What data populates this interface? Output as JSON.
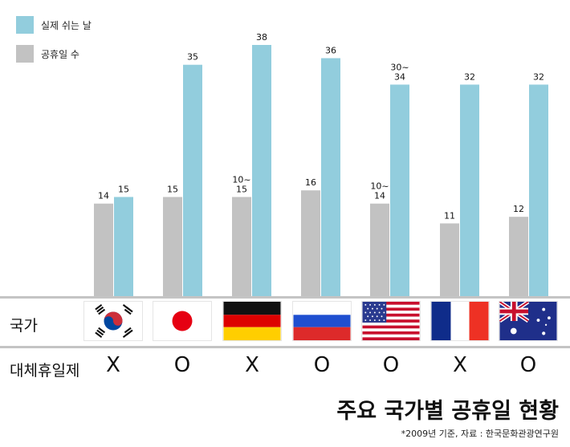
{
  "chart_data": {
    "type": "bar",
    "title": "주요 국가별 공휴일 현황",
    "source": "*2009년 기준, 자료 : 한국문화관광연구원",
    "series": [
      {
        "name": "실제 쉬는 날",
        "color": "#92cddd",
        "values": [
          15,
          35,
          38,
          36,
          32,
          32,
          32
        ],
        "labels": [
          "15",
          "35",
          "38",
          "36",
          "30~\n34",
          "32",
          "32"
        ]
      },
      {
        "name": "공휴일 수",
        "color": "#c2c2c2",
        "values": [
          14,
          15,
          15,
          16,
          14,
          11,
          12
        ],
        "labels": [
          "14",
          "15",
          "10~\n15",
          "16",
          "10~\n14",
          "11",
          "12"
        ]
      }
    ],
    "categories": [
      "korea",
      "japan",
      "germany",
      "russia",
      "usa",
      "france",
      "australia"
    ],
    "ylim": [
      0,
      45
    ]
  },
  "rows": {
    "country_label": "국가",
    "substitute_label": "대체휴일제"
  },
  "substitute_marks": [
    "X",
    "O",
    "X",
    "O",
    "O",
    "X",
    "O"
  ],
  "flags": [
    "korea-flag-icon",
    "japan-flag-icon",
    "germany-flag-icon",
    "russia-flag-icon",
    "usa-flag-icon",
    "france-flag-icon",
    "australia-flag-icon"
  ]
}
